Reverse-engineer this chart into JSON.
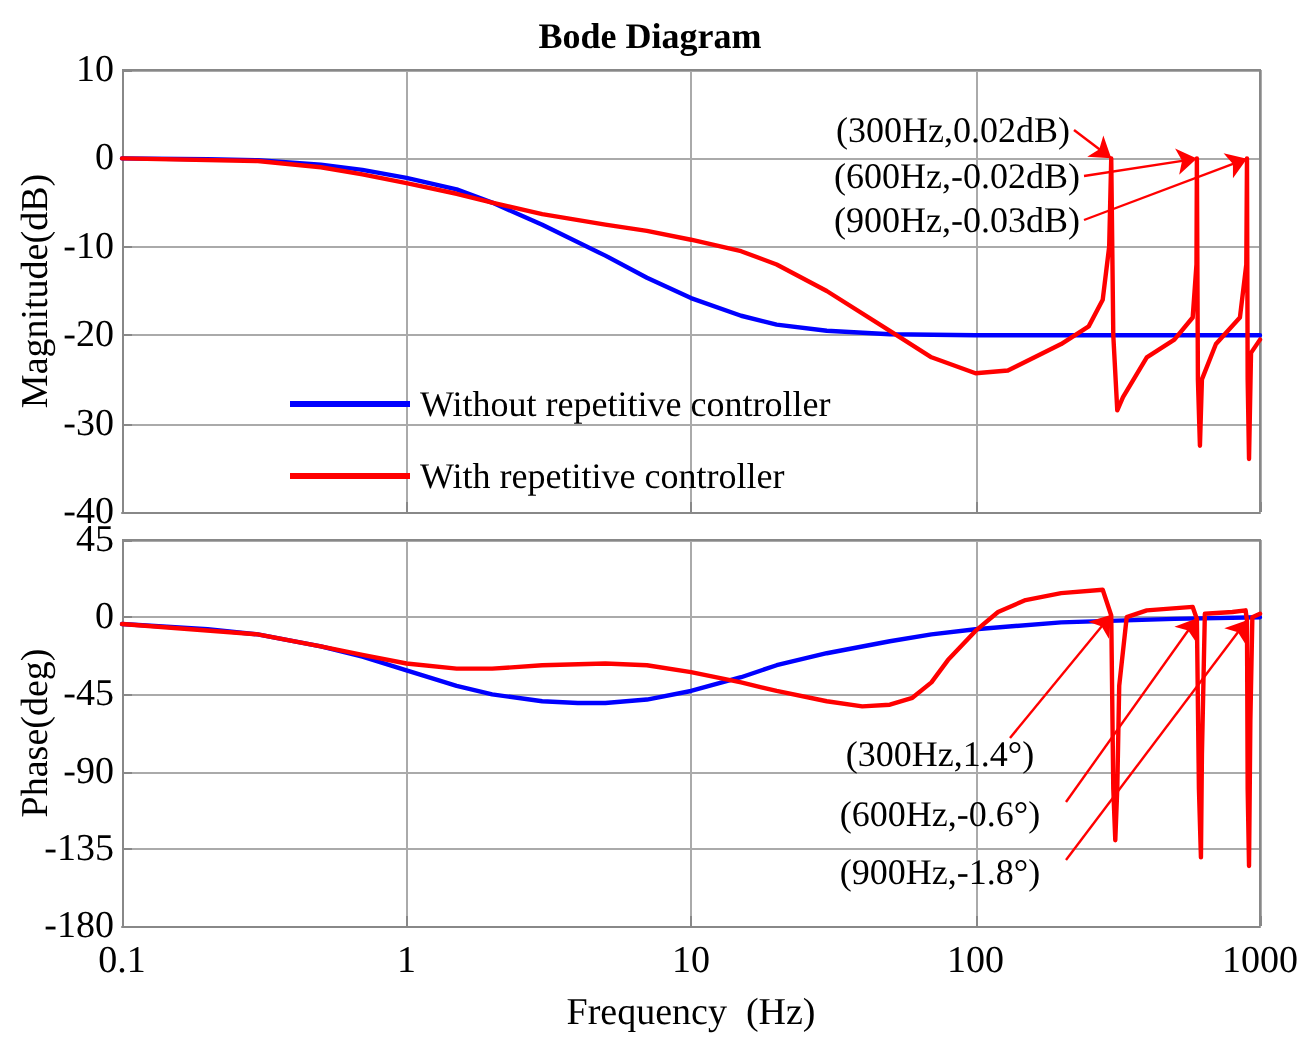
{
  "chart_data": [
    {
      "type": "line",
      "title": "Bode Diagram",
      "ylabel": "Magnitude(dB)",
      "log": "x",
      "xlim": [
        0.1,
        1000
      ],
      "xticks": [
        0.1,
        1,
        10,
        100,
        1000
      ],
      "ylim": [
        -40,
        10
      ],
      "yticks": [
        -40,
        -30,
        -20,
        -10,
        0,
        10
      ],
      "tick_labels": "y",
      "grid": true,
      "legend": "bottom left",
      "marker": "none",
      "line_style": "solid",
      "series": [
        {
          "name": "Without repetitive controller",
          "color": "#0000ff",
          "x": [
            0.1,
            0.2,
            0.3,
            0.5,
            0.7,
            1,
            1.5,
            2,
            3,
            5,
            7,
            10,
            15,
            20,
            30,
            50,
            100,
            1000
          ],
          "values": [
            0,
            -0.1,
            -0.2,
            -0.7,
            -1.3,
            -2.2,
            -3.5,
            -5,
            -7.5,
            -11,
            -13.5,
            -15.8,
            -17.8,
            -18.8,
            -19.5,
            -19.9,
            -20,
            -20
          ]
        },
        {
          "name": "With repetitive controller",
          "color": "#ff0000",
          "x": [
            0.1,
            0.3,
            0.5,
            0.7,
            1,
            1.5,
            2,
            3,
            5,
            7,
            10,
            15,
            20,
            30,
            50,
            70,
            100,
            130,
            200,
            250,
            280,
            295,
            300,
            305,
            315,
            330,
            400,
            500,
            580,
            598,
            600,
            605,
            615,
            625,
            700,
            850,
            895,
            900,
            905,
            915,
            930,
            1000
          ],
          "values": [
            0,
            -0.3,
            -1,
            -1.8,
            -2.8,
            -4,
            -5,
            -6.3,
            -7.5,
            -8.2,
            -9.2,
            -10.5,
            -12,
            -15,
            -19.5,
            -22.5,
            -24.3,
            -24,
            -21,
            -19,
            -16,
            -10,
            0,
            -20,
            -28.5,
            -27,
            -22.5,
            -20.5,
            -18,
            -12,
            0,
            -25,
            -32.5,
            -25,
            -21,
            -18,
            -12,
            0,
            -25,
            -34,
            -22,
            -20.5
          ]
        }
      ],
      "annotations": [
        {
          "text": "(300Hz,0.02dB)",
          "x": 300,
          "y": 0.02
        },
        {
          "text": "(600Hz,-0.02dB)",
          "x": 600,
          "y": -0.02
        },
        {
          "text": "(900Hz,-0.03dB)",
          "x": 900,
          "y": -0.03
        }
      ]
    },
    {
      "type": "line",
      "xlabel": "Frequency  (Hz)",
      "ylabel": "Phase(deg)",
      "log": "x",
      "xlim": [
        0.1,
        1000
      ],
      "xticks": [
        0.1,
        1,
        10,
        100,
        1000
      ],
      "ylim": [
        -180,
        45
      ],
      "yticks": [
        -180,
        -135,
        -90,
        -45,
        0,
        45
      ],
      "grid": true,
      "marker": "none",
      "line_style": "solid",
      "series": [
        {
          "color": "#0000ff",
          "x": [
            0.1,
            0.2,
            0.3,
            0.5,
            0.7,
            1,
            1.5,
            2,
            3,
            4,
            5,
            7,
            10,
            15,
            20,
            30,
            50,
            70,
            100,
            200,
            500,
            1000
          ],
          "values": [
            -4,
            -7,
            -10,
            -17,
            -23,
            -31,
            -40,
            -45,
            -49,
            -50,
            -50,
            -48,
            -43,
            -35,
            -28,
            -21,
            -14,
            -10,
            -7,
            -3,
            -1,
            0
          ]
        },
        {
          "color": "#ff0000",
          "x": [
            0.1,
            0.3,
            0.5,
            0.7,
            1,
            1.5,
            2,
            3,
            5,
            7,
            10,
            15,
            20,
            30,
            40,
            50,
            60,
            70,
            80,
            100,
            120,
            150,
            200,
            280,
            300,
            305,
            310,
            315,
            320,
            340,
            400,
            580,
            600,
            610,
            620,
            625,
            640,
            800,
            890,
            900,
            905,
            915,
            925,
            940,
            1000
          ],
          "values": [
            -4,
            -10,
            -17,
            -22,
            -27,
            -30,
            -30,
            -28,
            -27,
            -28,
            -32,
            -38,
            -43,
            -49,
            -52,
            -51,
            -47,
            -38,
            -25,
            -8,
            3,
            10,
            14,
            16,
            1,
            -100,
            -130,
            -100,
            -40,
            0,
            4,
            6,
            -1,
            -100,
            -140,
            -80,
            2,
            3,
            4,
            -2,
            -100,
            -145,
            -60,
            0,
            2
          ]
        }
      ],
      "annotations": [
        {
          "text": "(300Hz,1.4°)",
          "x": 300,
          "y": 1.4
        },
        {
          "text": "(600Hz,-0.6°)",
          "x": 600,
          "y": -0.6
        },
        {
          "text": "(900Hz,-1.8°)",
          "x": 900,
          "y": -1.8
        }
      ]
    }
  ]
}
